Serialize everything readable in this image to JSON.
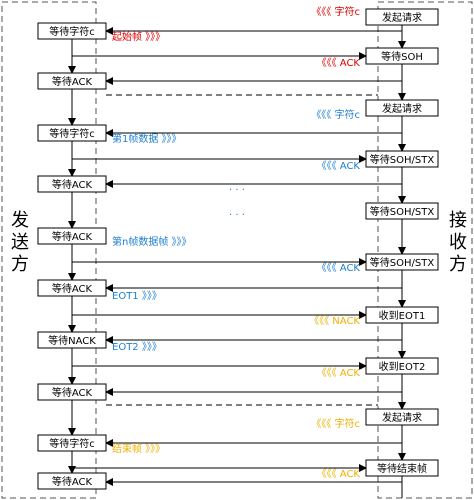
{
  "sender": {
    "label": "发送方",
    "states": [
      "等待字符c",
      "等待ACK",
      "等待字符c",
      "等待ACK",
      "等待ACK",
      "等待ACK",
      "等待NACK",
      "等待ACK",
      "等待字符c",
      "等待ACK"
    ]
  },
  "receiver": {
    "label": "接收方",
    "states": [
      "发起请求",
      "等待SOH",
      "发起请求",
      "等待SOH/STX",
      "等待SOH/STX",
      "等待SOH/STX",
      "收到EOT1",
      "收到EOT2",
      "发起请求",
      "等待结束帧"
    ]
  },
  "messages": [
    {
      "text": "《《《 字符c",
      "color": "#e00000"
    },
    {
      "text": "起始帧 》》》",
      "color": "#e00000"
    },
    {
      "text": "《《《  ACK",
      "color": "#e00000"
    },
    {
      "text": "《《《 字符c",
      "color": "#1e7fd0"
    },
    {
      "text": "第1帧数据 》》》",
      "color": "#1e7fd0"
    },
    {
      "text": "《《《  ACK",
      "color": "#1e7fd0"
    },
    {
      "text": "第n帧数据帧 》》》",
      "color": "#1e7fd0"
    },
    {
      "text": "《《《  ACK",
      "color": "#1e7fd0"
    },
    {
      "text": "EOT1 》》》",
      "color": "#1e7fd0"
    },
    {
      "text": "《《《  NACK",
      "color": "#f0b000"
    },
    {
      "text": "EOT2 》》》",
      "color": "#1e7fd0"
    },
    {
      "text": "《《《  ACK",
      "color": "#f0b000"
    },
    {
      "text": "《《《 字符c",
      "color": "#f0b000"
    },
    {
      "text": "结束帧 》》》",
      "color": "#f0b000"
    },
    {
      "text": "《《《  ACK",
      "color": "#f0b000"
    }
  ],
  "ellipses": [
    "· · ·",
    "· · ·"
  ]
}
